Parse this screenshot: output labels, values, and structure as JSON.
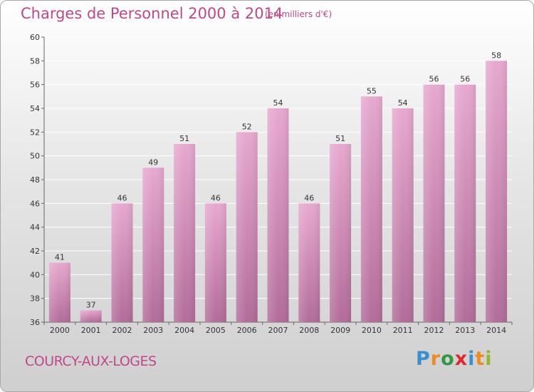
{
  "header": {
    "title": "Charges de Personnel 2000 à 2014",
    "subtitle": "(en milliers d'€)"
  },
  "footer": {
    "place": "COURCY-AUX-LOGES",
    "logo_letters": [
      "P",
      "r",
      "o",
      "x",
      "i",
      "t",
      "i"
    ],
    "logo_colors": [
      "#3a8fd1",
      "#f08b1d",
      "#2f9a3f",
      "#e2262b",
      "#3a8fd1",
      "#f08b1d",
      "#8dbb2a"
    ]
  },
  "colors": {
    "accent": "#c0478a",
    "bar_top": "#e7a8cf",
    "bar_bottom": "#b26c99"
  },
  "chart_data": {
    "type": "bar",
    "title": "Charges de Personnel 2000 à 2014",
    "subtitle": "(en milliers d'€)",
    "categories": [
      "2000",
      "2001",
      "2002",
      "2003",
      "2004",
      "2005",
      "2006",
      "2007",
      "2008",
      "2009",
      "2010",
      "2011",
      "2012",
      "2013",
      "2014"
    ],
    "values": [
      41,
      37,
      46,
      49,
      51,
      46,
      52,
      54,
      46,
      51,
      55,
      54,
      56,
      56,
      58
    ],
    "ylim": [
      36,
      60
    ],
    "yticks": [
      36,
      38,
      40,
      42,
      44,
      46,
      48,
      50,
      52,
      54,
      56,
      58,
      60
    ],
    "grid": true,
    "data_labels": true
  }
}
